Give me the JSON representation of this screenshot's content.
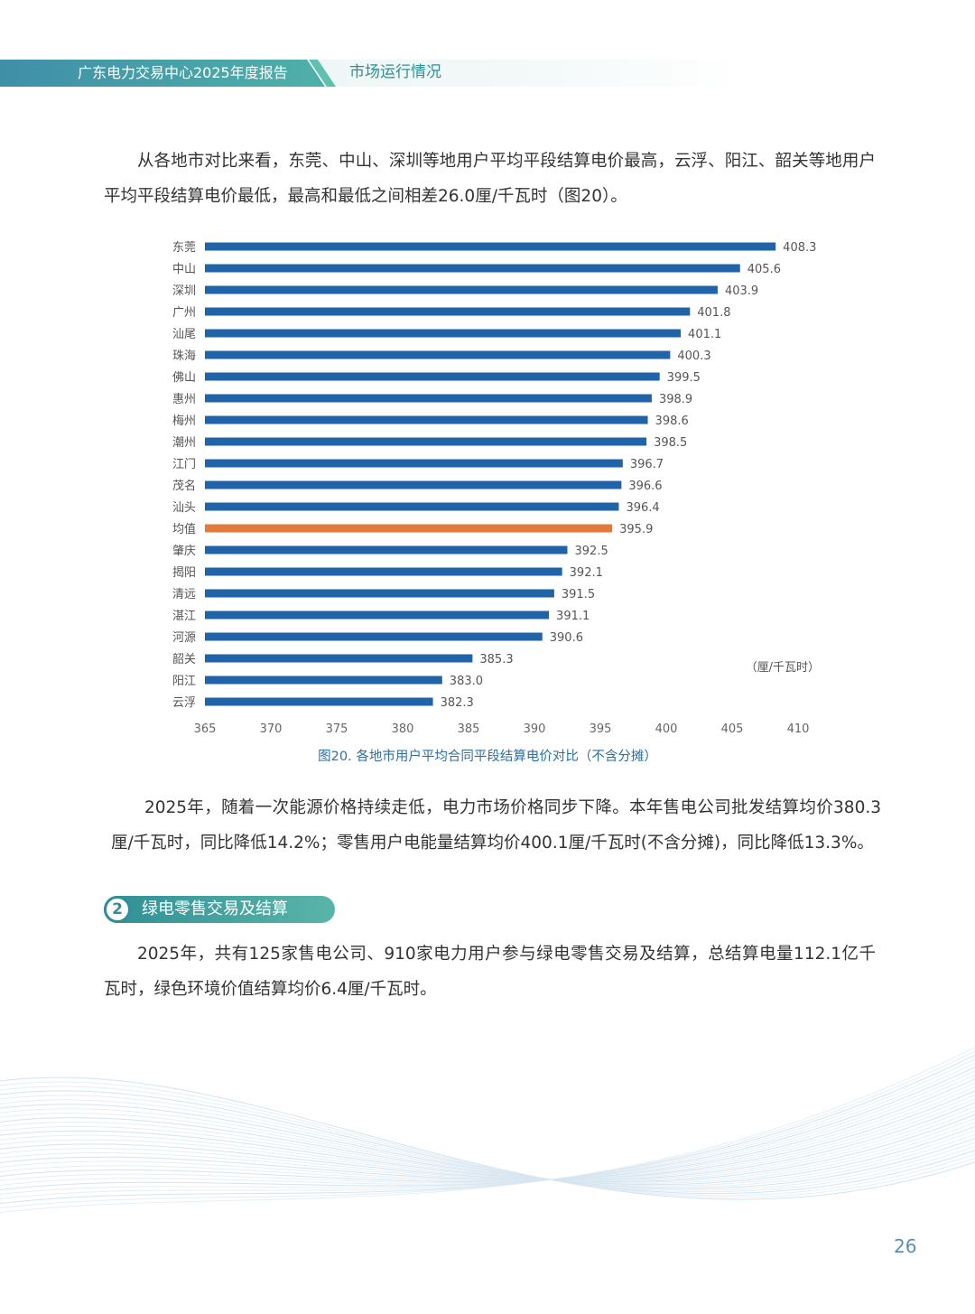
{
  "header": {
    "report_title": "广东电力交易中心2025年度报告",
    "section_title": "市场运行情况"
  },
  "paragraphs": {
    "intro": "从各地市对比来看，东莞、中山、深圳等地用户平均平段结算电价最高，云浮、阳江、韶关等地用户平均平段结算电价最低，最高和最低之间相差26.0厘/千瓦时（图20）。",
    "price_summary": "2025年，随着一次能源价格持续走低，电力市场价格同步下降。本年售电公司批发结算均价380.3厘/千瓦时，同比降低14.2%；零售用户电能量结算均价400.1厘/千瓦时(不含分摊)，同比降低13.3%。",
    "green_retail": "2025年，共有125家售电公司、910家电力用户参与绿电零售交易及结算，总结算电量112.1亿千瓦时，绿色环境价值结算均价6.4厘/千瓦时。"
  },
  "section2": {
    "number": "2",
    "title": "绿电零售交易及结算"
  },
  "chart_data": {
    "type": "bar",
    "orientation": "horizontal",
    "categories": [
      "东莞",
      "中山",
      "深圳",
      "广州",
      "汕尾",
      "珠海",
      "佛山",
      "惠州",
      "梅州",
      "潮州",
      "江门",
      "茂名",
      "汕头",
      "均值",
      "肇庆",
      "揭阳",
      "清远",
      "湛江",
      "河源",
      "韶关",
      "阳江",
      "云浮"
    ],
    "values": [
      408.3,
      405.6,
      403.9,
      401.8,
      401.1,
      400.3,
      399.5,
      398.9,
      398.6,
      398.5,
      396.7,
      396.6,
      396.4,
      395.9,
      392.5,
      392.1,
      391.5,
      391.1,
      390.6,
      385.3,
      383.0,
      382.3
    ],
    "value_labels": [
      "408.3",
      "405.6",
      "403.9",
      "401.8",
      "401.1",
      "400.3",
      "399.5",
      "398.9",
      "398.6",
      "398.5",
      "396.7",
      "396.6",
      "396.4",
      "395.9",
      "392.5",
      "392.1",
      "391.5",
      "391.1",
      "390.6",
      "385.3",
      "383.0",
      "382.3"
    ],
    "highlight_category": "均值",
    "xlim": [
      365,
      410
    ],
    "x_ticks": [
      "365",
      "370",
      "375",
      "380",
      "385",
      "390",
      "395",
      "400",
      "405",
      "410"
    ],
    "unit_label": "（厘/千瓦时）",
    "caption": "图20. 各地市用户平均合同平段结算电价对比（不含分摊）",
    "colors": {
      "bar": "#2163a8",
      "highlight": "#e07b3c",
      "label": "#555555",
      "axis": "#666666"
    },
    "grid": false
  },
  "page_number": "26"
}
